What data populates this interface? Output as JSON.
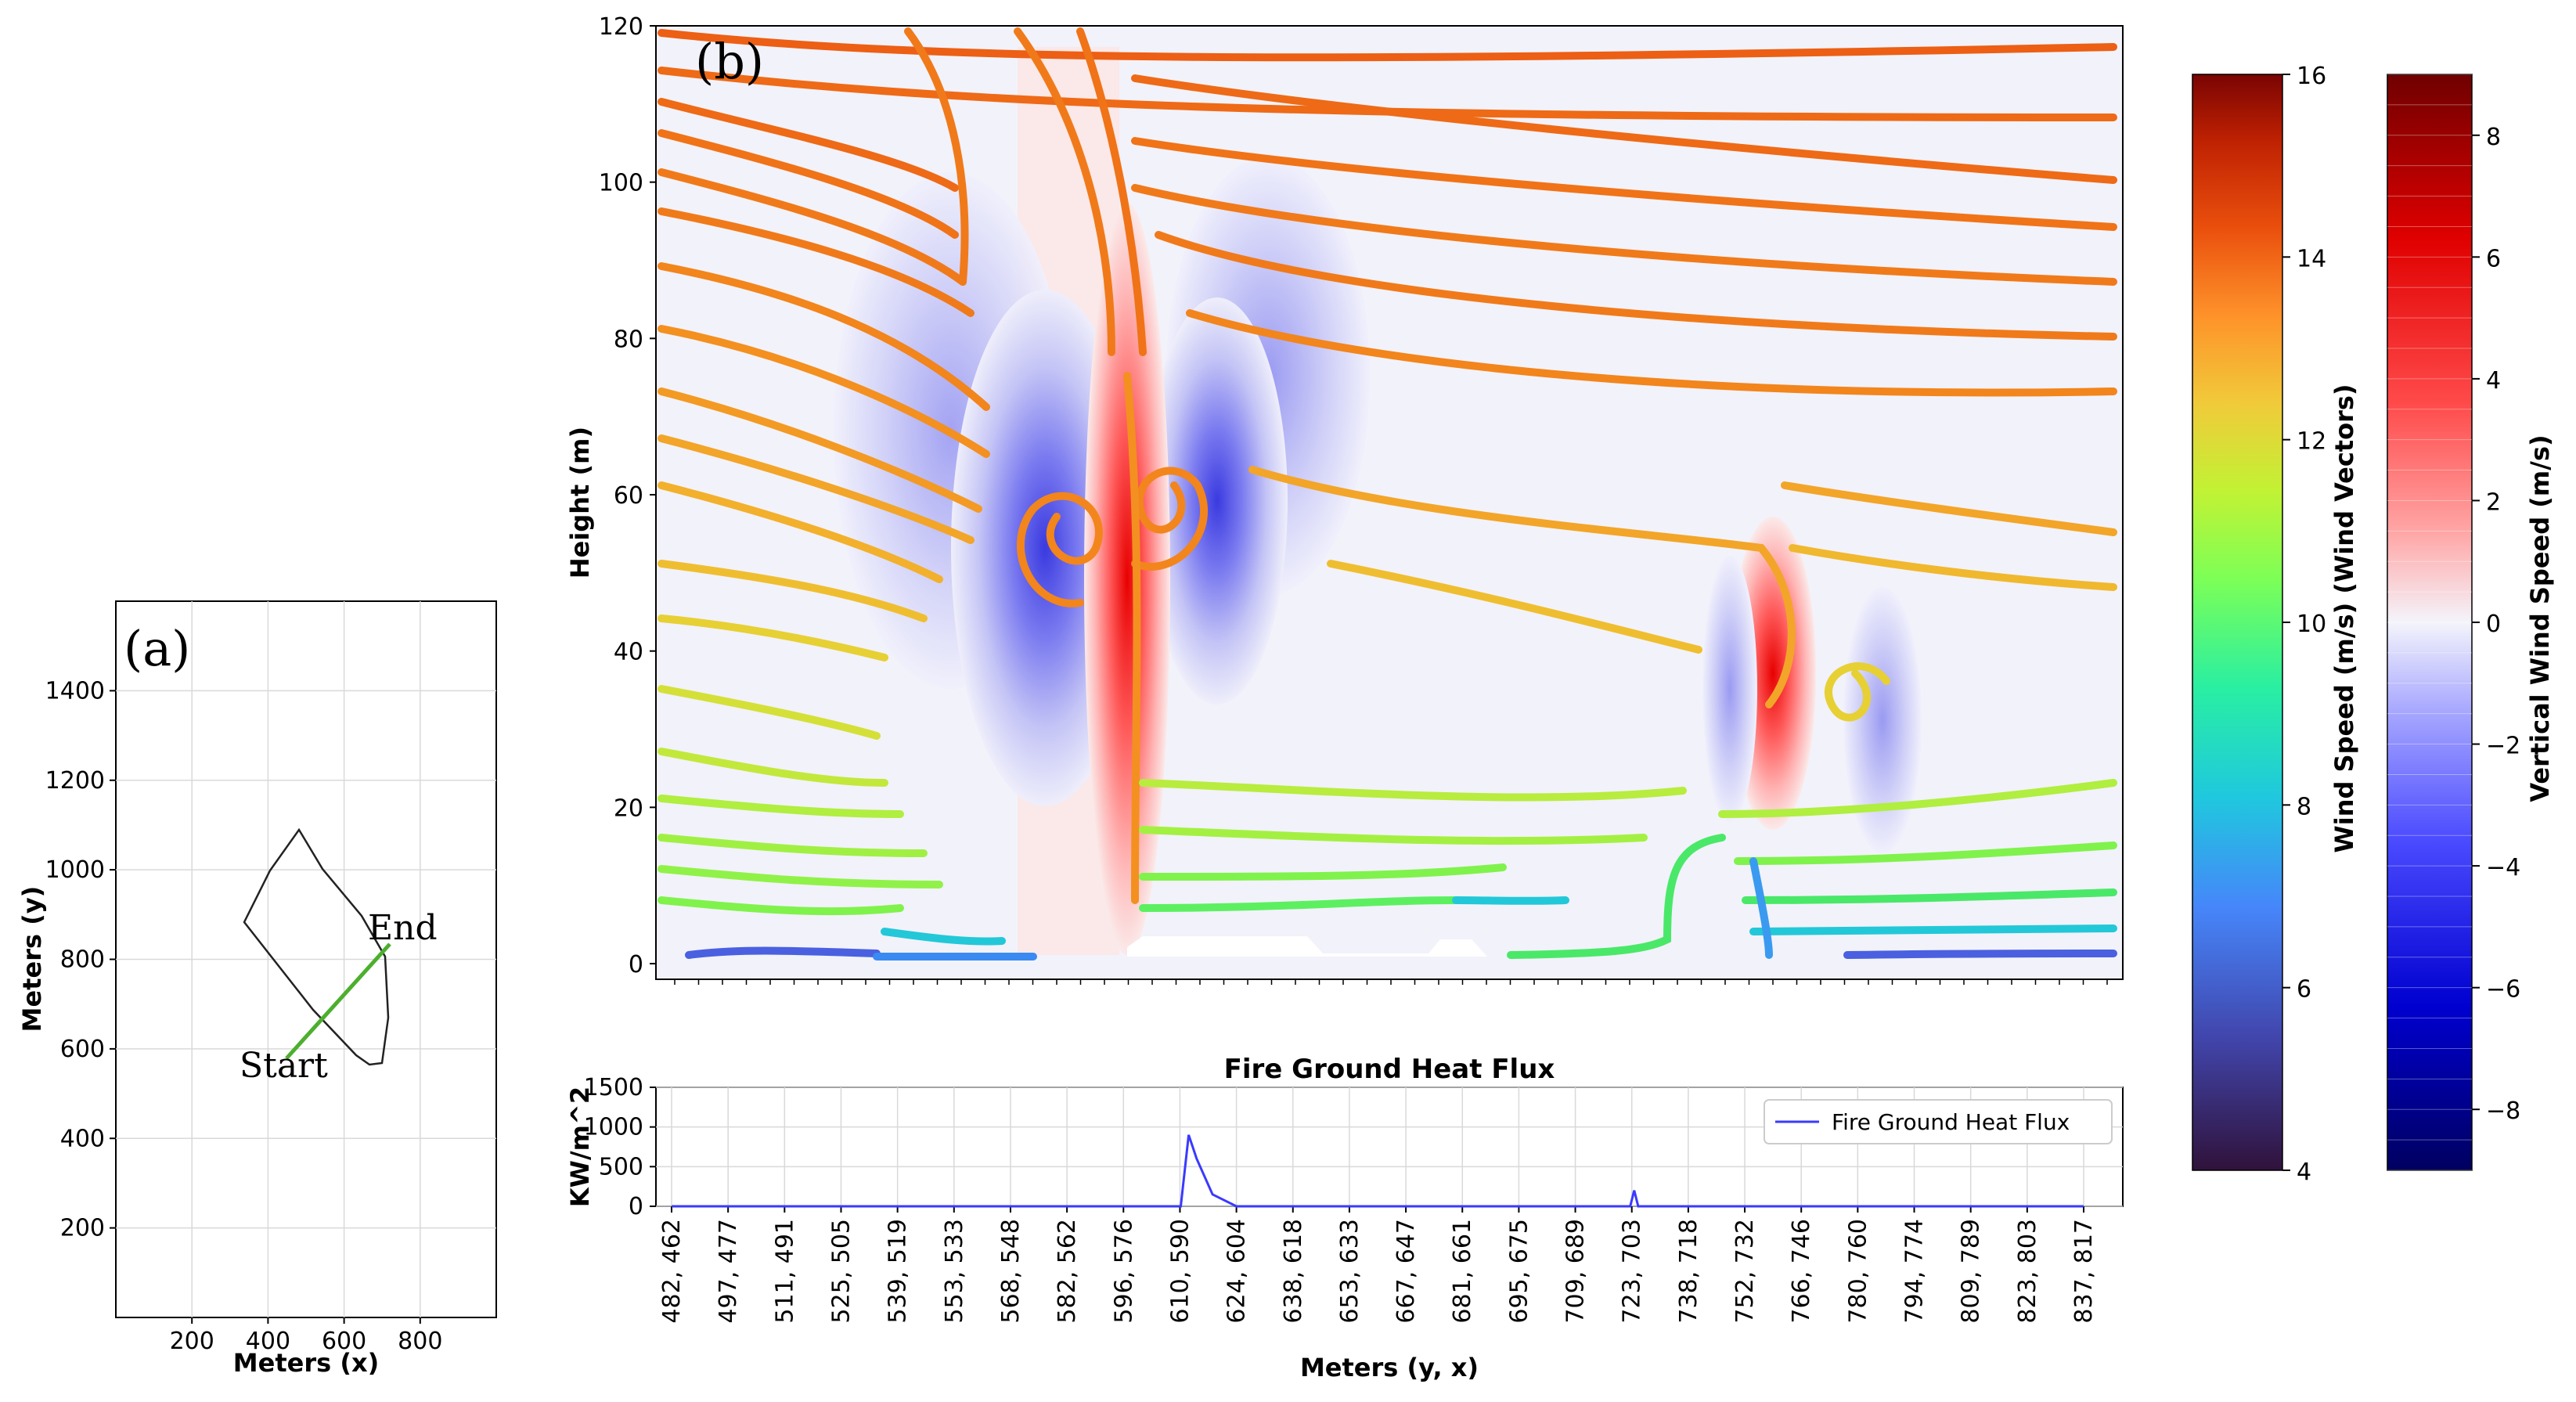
{
  "panel_a": {
    "label": "(a)",
    "xlabel": "Meters (x)",
    "ylabel": "Meters (y)",
    "x_ticks": [
      "200",
      "400",
      "600",
      "800"
    ],
    "y_ticks": [
      "200",
      "400",
      "600",
      "800",
      "1000",
      "1200",
      "1400"
    ],
    "start_label": "Start",
    "end_label": "End",
    "colors": {
      "transect": "#4caf2e",
      "perimeter": "#222222"
    }
  },
  "panel_b": {
    "label": "(b)",
    "ylabel": "Height (m)",
    "y_ticks": [
      "0",
      "20",
      "40",
      "60",
      "80",
      "100",
      "120"
    ]
  },
  "flux_panel": {
    "title": "Fire Ground Heat Flux",
    "ylabel": "KW/m^2",
    "xlabel": "Meters (y, x)",
    "legend": "Fire Ground Heat Flux",
    "y_ticks": [
      "0",
      "500",
      "1000",
      "1500"
    ],
    "x_ticks": [
      "482, 462",
      "497, 477",
      "511, 491",
      "525, 505",
      "539, 519",
      "553, 533",
      "568, 548",
      "582, 562",
      "596, 576",
      "610, 590",
      "624, 604",
      "638, 618",
      "653, 633",
      "667, 647",
      "681, 661",
      "695, 675",
      "709, 689",
      "723, 703",
      "738, 718",
      "752, 732",
      "766, 746",
      "780, 760",
      "794, 774",
      "809, 789",
      "823, 803",
      "837, 817"
    ],
    "line_color": "#3a3aff"
  },
  "colorbar_wind": {
    "label": "Wind Speed (m/s) (Wind Vectors)",
    "ticks": [
      "4",
      "6",
      "8",
      "10",
      "12",
      "14",
      "16"
    ]
  },
  "colorbar_vertical": {
    "label": "Vertical Wind Speed (m/s)",
    "ticks": [
      "−8",
      "−6",
      "−4",
      "−2",
      "0",
      "2",
      "4",
      "6",
      "8"
    ]
  },
  "chart_data": [
    {
      "type": "line",
      "title": "Fire Ground Heat Flux",
      "xlabel": "Meters (y, x)",
      "ylabel": "KW/m^2",
      "ylim": [
        0,
        1500
      ],
      "grid": true,
      "legend_placement": "top-right",
      "series": [
        {
          "name": "Fire Ground Heat Flux",
          "x": [
            "482, 462",
            "596, 576",
            "610, 590",
            "612, 592",
            "614, 594",
            "618, 598",
            "624, 604",
            "723, 703",
            "724, 704",
            "725, 705",
            "837, 817"
          ],
          "values": [
            0,
            0,
            0,
            900,
            600,
            150,
            0,
            0,
            200,
            0,
            0
          ]
        }
      ]
    },
    {
      "type": "heatmap",
      "description_of_axes": "Height (m) vs transect position",
      "ylabel": "Height (m)",
      "ylim": [
        0,
        120
      ],
      "colorbar_vertical_range": [
        -9,
        9
      ],
      "colorbar_wind_range": [
        4,
        16
      ]
    },
    {
      "type": "line",
      "xlabel": "Meters (x)",
      "ylabel": "Meters (y)",
      "xlim": [
        0,
        1000
      ],
      "ylim": [
        0,
        1600
      ],
      "grid": true
    }
  ]
}
